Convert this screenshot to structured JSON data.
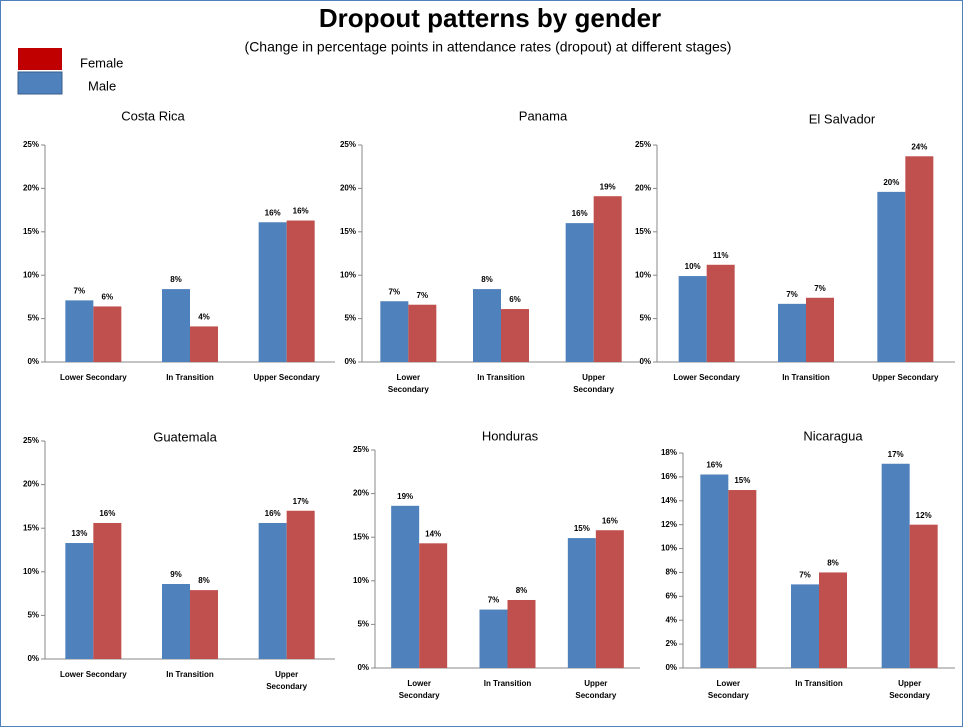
{
  "title": "Dropout patterns by gender",
  "subtitle": "(Change in percentage points in attendance rates (dropout) at different stages)",
  "legend": [
    {
      "name": "Male",
      "color": "#4f81bd"
    },
    {
      "name": "Female",
      "color": "#c0504d"
    }
  ],
  "legend_swatches": [
    "#4f81bd",
    "#c00000"
  ],
  "chart_data": [
    {
      "type": "bar",
      "title": "Costa Rica",
      "categories": [
        "Lower Secondary",
        "In Transition",
        "Upper Secondary"
      ],
      "ylim": [
        0,
        25
      ],
      "yticks": [
        {
          "value": 0,
          "label": "0%"
        },
        {
          "value": 5,
          "label": "5%"
        },
        {
          "value": 10,
          "label": "10%"
        },
        {
          "value": 15,
          "label": "15%"
        },
        {
          "value": 20,
          "label": "20%"
        },
        {
          "value": 25,
          "label": "25%"
        }
      ],
      "series": [
        {
          "values": [
            7.1,
            8.4,
            16.1
          ],
          "value_labels": [
            "7%",
            "8%",
            "16%"
          ]
        },
        {
          "values": [
            6.4,
            4.1,
            16.3
          ],
          "value_labels": [
            "6%",
            "4%",
            "16%"
          ]
        }
      ]
    },
    {
      "type": "bar",
      "title": "Panama",
      "categories": [
        "Lower Secondary",
        "In Transition",
        "Upper Secondary"
      ],
      "ylim": [
        0,
        25
      ],
      "yticks": [
        {
          "value": 0,
          "label": "0%"
        },
        {
          "value": 5,
          "label": "5%"
        },
        {
          "value": 10,
          "label": "10%"
        },
        {
          "value": 15,
          "label": "15%"
        },
        {
          "value": 20,
          "label": "20%"
        },
        {
          "value": 25,
          "label": "25%"
        }
      ],
      "series": [
        {
          "values": [
            7.0,
            8.4,
            16.0
          ],
          "value_labels": [
            "7%",
            "8%",
            "16%"
          ]
        },
        {
          "values": [
            6.6,
            6.1,
            19.1
          ],
          "value_labels": [
            "7%",
            "6%",
            "19%"
          ]
        }
      ]
    },
    {
      "type": "bar",
      "title": "El Salvador",
      "categories": [
        "Lower Secondary",
        "In Transition",
        "Upper Secondary"
      ],
      "ylim": [
        0,
        25
      ],
      "yticks": [
        {
          "value": 0,
          "label": "0%"
        },
        {
          "value": 5,
          "label": "5%"
        },
        {
          "value": 10,
          "label": "10%"
        },
        {
          "value": 15,
          "label": "15%"
        },
        {
          "value": 20,
          "label": "20%"
        },
        {
          "value": 25,
          "label": "25%"
        }
      ],
      "series": [
        {
          "values": [
            9.9,
            6.7,
            19.6
          ],
          "value_labels": [
            "10%",
            "7%",
            "20%"
          ]
        },
        {
          "values": [
            11.2,
            7.4,
            23.7
          ],
          "value_labels": [
            "11%",
            "7%",
            "24%"
          ]
        }
      ]
    },
    {
      "type": "bar",
      "title": "Guatemala",
      "categories": [
        "Lower Secondary",
        "In Transition",
        "Upper Secondary"
      ],
      "ylim": [
        0,
        25
      ],
      "yticks": [
        {
          "value": 0,
          "label": "0%"
        },
        {
          "value": 5,
          "label": "5%"
        },
        {
          "value": 10,
          "label": "10%"
        },
        {
          "value": 15,
          "label": "15%"
        },
        {
          "value": 20,
          "label": "20%"
        },
        {
          "value": 25,
          "label": "25%"
        }
      ],
      "series": [
        {
          "values": [
            13.3,
            8.6,
            15.6
          ],
          "value_labels": [
            "13%",
            "9%",
            "16%"
          ]
        },
        {
          "values": [
            15.6,
            7.9,
            17.0
          ],
          "value_labels": [
            "16%",
            "8%",
            "17%"
          ]
        }
      ]
    },
    {
      "type": "bar",
      "title": "Honduras",
      "categories": [
        "Lower Secondary",
        "In Transition",
        "Upper Secondary"
      ],
      "ylim": [
        0,
        25
      ],
      "yticks": [
        {
          "value": 0,
          "label": "0%"
        },
        {
          "value": 5,
          "label": "5%"
        },
        {
          "value": 10,
          "label": "10%"
        },
        {
          "value": 15,
          "label": "15%"
        },
        {
          "value": 20,
          "label": "20%"
        },
        {
          "value": 25,
          "label": "25%"
        }
      ],
      "series": [
        {
          "values": [
            18.6,
            6.7,
            14.9
          ],
          "value_labels": [
            "19%",
            "7%",
            "15%"
          ]
        },
        {
          "values": [
            14.3,
            7.8,
            15.8
          ],
          "value_labels": [
            "14%",
            "8%",
            "16%"
          ]
        }
      ]
    },
    {
      "type": "bar",
      "title": "Nicaragua",
      "categories": [
        "Lower Secondary",
        "In Transition",
        "Upper Secondary"
      ],
      "ylim": [
        0,
        18
      ],
      "yticks": [
        {
          "value": 0,
          "label": "0%"
        },
        {
          "value": 2,
          "label": "2%"
        },
        {
          "value": 4,
          "label": "4%"
        },
        {
          "value": 6,
          "label": "6%"
        },
        {
          "value": 8,
          "label": "8%"
        },
        {
          "value": 10,
          "label": "10%"
        },
        {
          "value": 12,
          "label": "12%"
        },
        {
          "value": 14,
          "label": "14%"
        },
        {
          "value": 16,
          "label": "16%"
        },
        {
          "value": 18,
          "label": "18%"
        }
      ],
      "series": [
        {
          "values": [
            16.2,
            7.0,
            17.1
          ],
          "value_labels": [
            "16%",
            "7%",
            "17%"
          ]
        },
        {
          "values": [
            14.9,
            8.0,
            12.0
          ],
          "value_labels": [
            "15%",
            "8%",
            "12%"
          ]
        }
      ]
    }
  ]
}
